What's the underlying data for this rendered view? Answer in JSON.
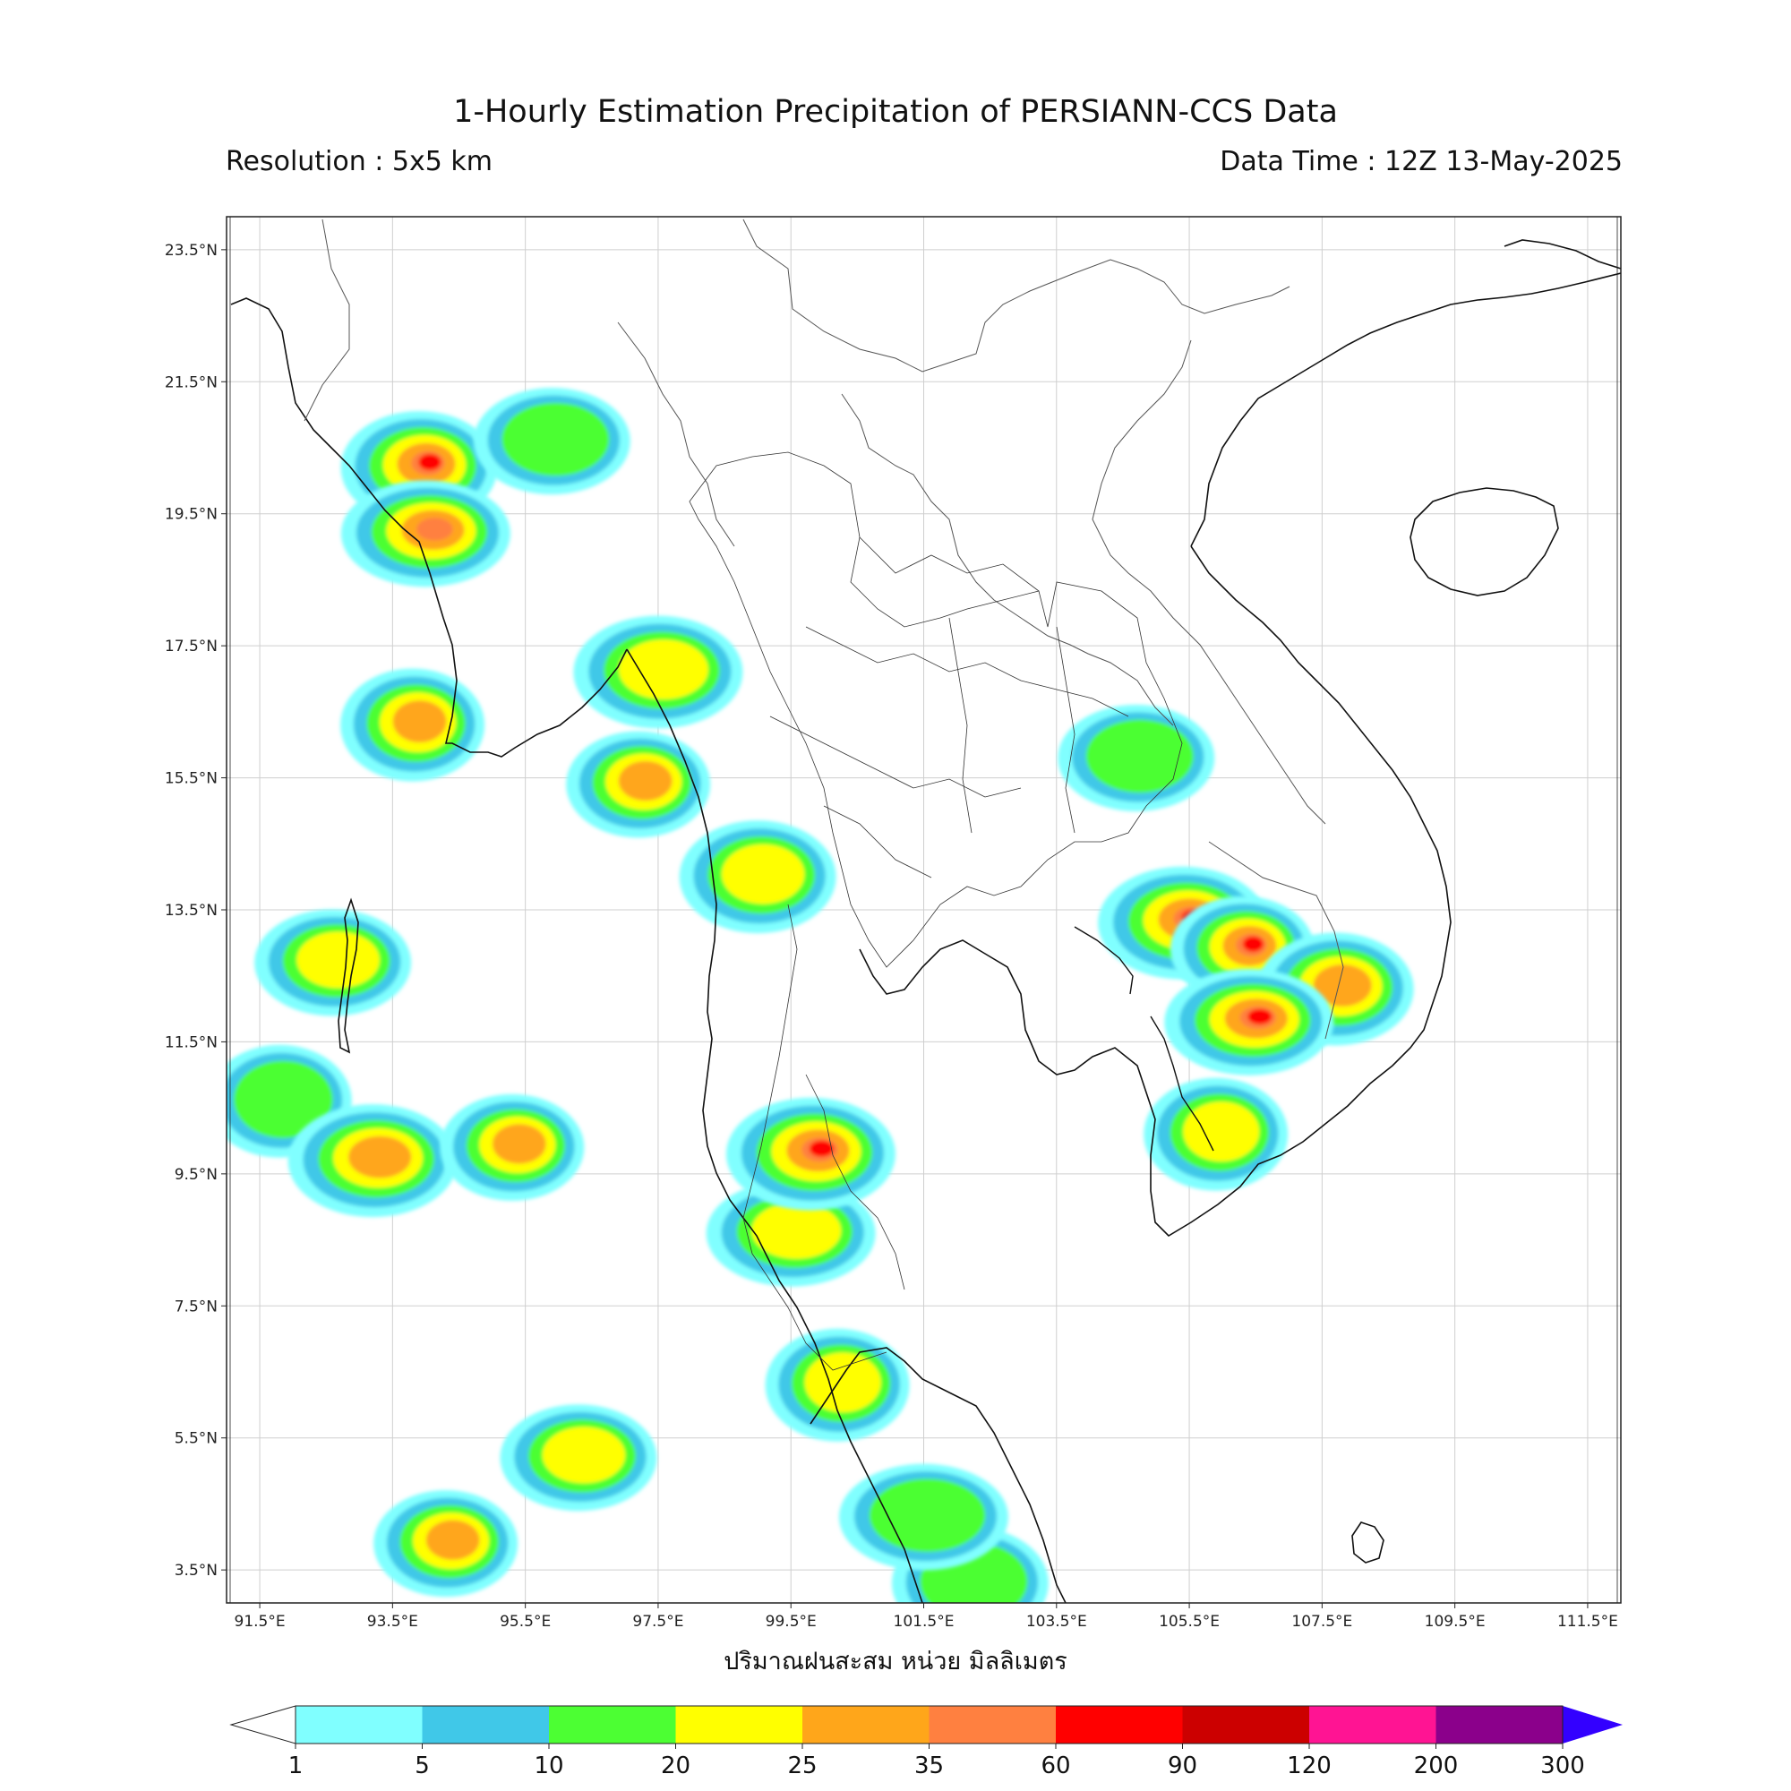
{
  "header": {
    "title": "1-Hourly Estimation Precipitation of PERSIANN-CCS Data",
    "resolution": "Resolution : 5x5 km",
    "data_time": "Data Time : 12Z 13-May-2025"
  },
  "map": {
    "lon_range": [
      91.0,
      112.0
    ],
    "lat_range": [
      3.0,
      24.0
    ],
    "lon_ticks": [
      {
        "value": 91.5,
        "label": "91.5°E"
      },
      {
        "value": 93.5,
        "label": "93.5°E"
      },
      {
        "value": 95.5,
        "label": "95.5°E"
      },
      {
        "value": 97.5,
        "label": "97.5°E"
      },
      {
        "value": 99.5,
        "label": "99.5°E"
      },
      {
        "value": 101.5,
        "label": "101.5°E"
      },
      {
        "value": 103.5,
        "label": "103.5°E"
      },
      {
        "value": 105.5,
        "label": "105.5°E"
      },
      {
        "value": 107.5,
        "label": "107.5°E"
      },
      {
        "value": 109.5,
        "label": "109.5°E"
      },
      {
        "value": 111.5,
        "label": "111.5°E"
      }
    ],
    "lat_ticks": [
      {
        "value": 23.5,
        "label": "23.5°N"
      },
      {
        "value": 21.5,
        "label": "21.5°N"
      },
      {
        "value": 19.5,
        "label": "19.5°N"
      },
      {
        "value": 17.5,
        "label": "17.5°N"
      },
      {
        "value": 15.5,
        "label": "15.5°N"
      },
      {
        "value": 13.5,
        "label": "13.5°N"
      },
      {
        "value": 11.5,
        "label": "11.5°N"
      },
      {
        "value": 9.5,
        "label": "9.5°N"
      },
      {
        "value": 7.5,
        "label": "7.5°N"
      },
      {
        "value": 5.5,
        "label": "5.5°N"
      },
      {
        "value": 3.5,
        "label": "3.5°N"
      }
    ],
    "xlabel": "ปริมาณฝนสะสม หน่วย มิลลิเมตร",
    "rain_cells": [
      {
        "lon": 91.8,
        "lat": 10.6,
        "level": 2
      },
      {
        "lon": 92.6,
        "lat": 12.7,
        "level": 3
      },
      {
        "lon": 93.2,
        "lat": 9.7,
        "level": 4
      },
      {
        "lon": 95.3,
        "lat": 9.9,
        "level": 4
      },
      {
        "lon": 93.9,
        "lat": 20.2,
        "level": 6
      },
      {
        "lon": 94.0,
        "lat": 19.2,
        "level": 5
      },
      {
        "lon": 93.8,
        "lat": 16.3,
        "level": 4
      },
      {
        "lon": 95.9,
        "lat": 20.6,
        "level": 2
      },
      {
        "lon": 97.5,
        "lat": 17.1,
        "level": 3
      },
      {
        "lon": 97.2,
        "lat": 15.4,
        "level": 4
      },
      {
        "lon": 99.0,
        "lat": 14.0,
        "level": 3
      },
      {
        "lon": 99.5,
        "lat": 8.6,
        "level": 3
      },
      {
        "lon": 100.2,
        "lat": 6.3,
        "level": 3
      },
      {
        "lon": 96.3,
        "lat": 5.2,
        "level": 3
      },
      {
        "lon": 105.4,
        "lat": 13.3,
        "level": 6
      },
      {
        "lon": 106.3,
        "lat": 12.9,
        "level": 6
      },
      {
        "lon": 107.7,
        "lat": 12.3,
        "level": 4
      },
      {
        "lon": 106.4,
        "lat": 11.8,
        "level": 6
      },
      {
        "lon": 105.9,
        "lat": 10.1,
        "level": 3
      },
      {
        "lon": 104.7,
        "lat": 15.8,
        "level": 2
      },
      {
        "lon": 99.8,
        "lat": 9.8,
        "level": 6
      },
      {
        "lon": 94.3,
        "lat": 3.9,
        "level": 4
      },
      {
        "lon": 102.2,
        "lat": 3.3,
        "level": 2
      },
      {
        "lon": 101.5,
        "lat": 4.3,
        "level": 2
      }
    ]
  },
  "colorbar": {
    "colors": [
      "#80ffff",
      "#40c8e8",
      "#4cff33",
      "#ffff00",
      "#ffa61a",
      "#ff8040",
      "#ff0000",
      "#cc0000",
      "#ff1493",
      "#8b008b",
      "#3300ff"
    ],
    "labels": [
      "1",
      "5",
      "10",
      "20",
      "25",
      "35",
      "60",
      "90",
      "120",
      "200",
      "300"
    ]
  }
}
